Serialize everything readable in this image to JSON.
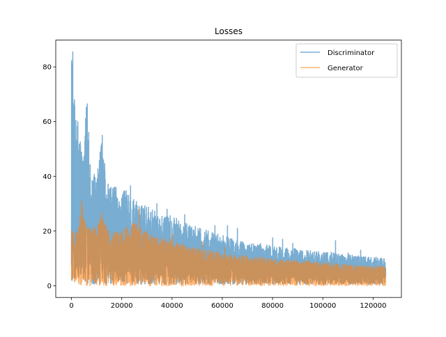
{
  "chart_data": {
    "type": "line",
    "title": "Losses",
    "xlabel": "",
    "ylabel": "",
    "xlim": [
      -6250,
      131250
    ],
    "ylim": [
      -4.27,
      89.8
    ],
    "xticks": [
      0,
      20000,
      40000,
      60000,
      80000,
      100000,
      120000
    ],
    "yticks": [
      0,
      20,
      40,
      60,
      80
    ],
    "grid": false,
    "legend_position": "top-right",
    "series": [
      {
        "name": "Discriminator",
        "color": "#1f77b4",
        "alpha": 0.6,
        "x": [
          0,
          1000,
          2000,
          3000,
          4000,
          5000,
          6000,
          8000,
          10000,
          12000,
          15000,
          20000,
          25000,
          30000,
          35000,
          40000,
          45000,
          50000,
          55000,
          60000,
          65000,
          70000,
          75000,
          80000,
          85000,
          90000,
          95000,
          100000,
          105000,
          110000,
          115000,
          120000,
          125000
        ],
        "envelope": [
          85.5,
          68,
          60,
          54,
          52,
          51,
          66.5,
          42,
          39,
          55,
          36,
          36,
          31,
          29,
          26,
          25,
          22.5,
          21,
          19.5,
          18,
          17,
          16,
          15,
          14,
          13.5,
          13,
          12.5,
          12,
          11.5,
          11,
          10.5,
          10,
          9.5
        ],
        "baseline": 0.5,
        "spikes": [
          [
            500,
            85.5
          ],
          [
            1200,
            68
          ],
          [
            2500,
            60
          ],
          [
            6300,
            66.5
          ],
          [
            12200,
            55
          ],
          [
            23500,
            36.5
          ],
          [
            34000,
            30
          ],
          [
            38000,
            28
          ],
          [
            45000,
            26
          ],
          [
            57000,
            22
          ],
          [
            62000,
            22
          ],
          [
            66000,
            21
          ],
          [
            80000,
            17.5
          ],
          [
            84000,
            17
          ],
          [
            88000,
            15.5
          ],
          [
            105000,
            16.5
          ],
          [
            110000,
            12
          ],
          [
            115000,
            13
          ]
        ]
      },
      {
        "name": "Generator",
        "color": "#ff7f0e",
        "alpha": 0.6,
        "x": [
          0,
          1000,
          2000,
          3000,
          4000,
          5000,
          6000,
          8000,
          10000,
          12000,
          15000,
          20000,
          25000,
          30000,
          35000,
          40000,
          45000,
          50000,
          55000,
          60000,
          65000,
          70000,
          75000,
          80000,
          85000,
          90000,
          95000,
          100000,
          105000,
          110000,
          115000,
          120000,
          125000
        ],
        "envelope": [
          22,
          20,
          20,
          22,
          31,
          26,
          22,
          21,
          22,
          26,
          20,
          20,
          24,
          19,
          18,
          17,
          15,
          14,
          13,
          12,
          11.5,
          11,
          10.5,
          10,
          9.5,
          9.3,
          9,
          8.6,
          8.2,
          7.8,
          7.5,
          7.2,
          7
        ],
        "baseline": 0,
        "spikes": [
          [
            4000,
            31
          ],
          [
            12000,
            26.5
          ],
          [
            27000,
            28
          ],
          [
            30000,
            20
          ],
          [
            40000,
            19
          ],
          [
            52000,
            16
          ],
          [
            61000,
            14
          ]
        ]
      }
    ]
  }
}
